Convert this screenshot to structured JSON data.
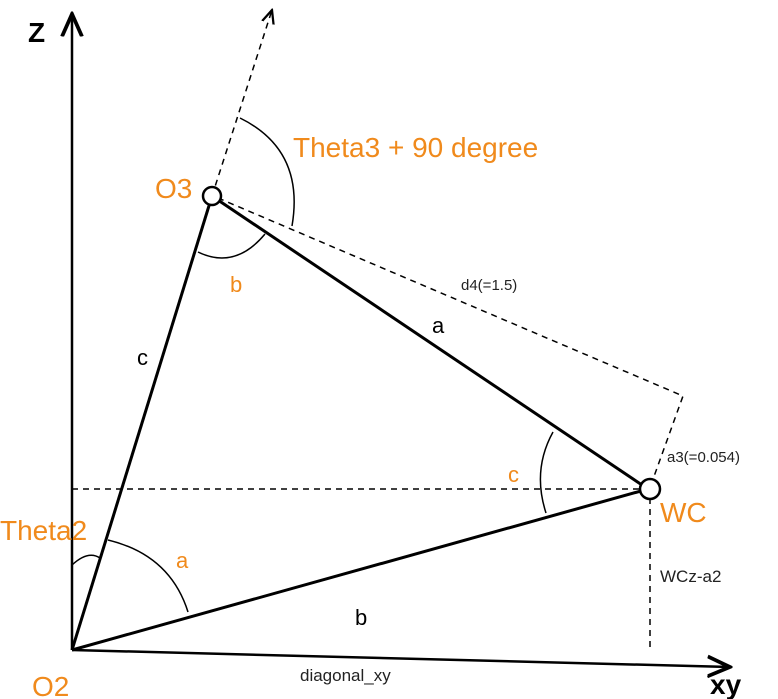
{
  "axes": {
    "z_label": "Z",
    "xy_label": "xy"
  },
  "points": {
    "o2": "O2",
    "o3": "O3",
    "wc": "WC"
  },
  "sides": {
    "a": "a",
    "b": "b",
    "c": "c"
  },
  "angles": {
    "a": "a",
    "b": "b",
    "c": "c",
    "theta2": "Theta2",
    "theta3": "Theta3 + 90 degree"
  },
  "dims": {
    "d4": "d4(=1.5)",
    "a3": "a3(=0.054)",
    "wcz": "WCz-a2",
    "diag": "diagonal_xy"
  },
  "colors": {
    "accent": "#f08a1c",
    "line": "#000000"
  }
}
